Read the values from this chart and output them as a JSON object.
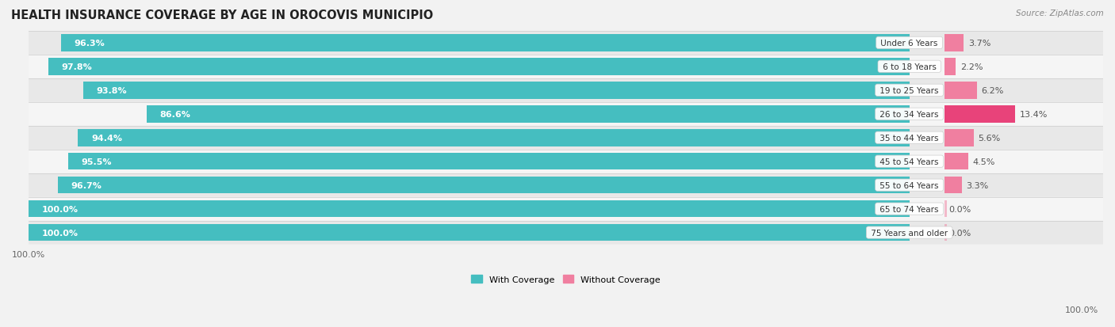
{
  "title": "HEALTH INSURANCE COVERAGE BY AGE IN OROCOVIS MUNICIPIO",
  "source": "Source: ZipAtlas.com",
  "categories": [
    "Under 6 Years",
    "6 to 18 Years",
    "19 to 25 Years",
    "26 to 34 Years",
    "35 to 44 Years",
    "45 to 54 Years",
    "55 to 64 Years",
    "65 to 74 Years",
    "75 Years and older"
  ],
  "with_coverage": [
    96.3,
    97.8,
    93.8,
    86.6,
    94.4,
    95.5,
    96.7,
    100.0,
    100.0
  ],
  "without_coverage": [
    3.7,
    2.2,
    6.2,
    13.4,
    5.6,
    4.5,
    3.3,
    0.0,
    0.0
  ],
  "with_coverage_color": "#45bec0",
  "without_coverage_color": "#f07fa0",
  "without_coverage_color_26_34": "#e8437a",
  "background_color": "#f2f2f2",
  "row_color_odd": "#e8e8e8",
  "row_color_even": "#f5f5f5",
  "title_fontsize": 10.5,
  "label_fontsize": 8,
  "tick_fontsize": 8,
  "source_fontsize": 7.5
}
